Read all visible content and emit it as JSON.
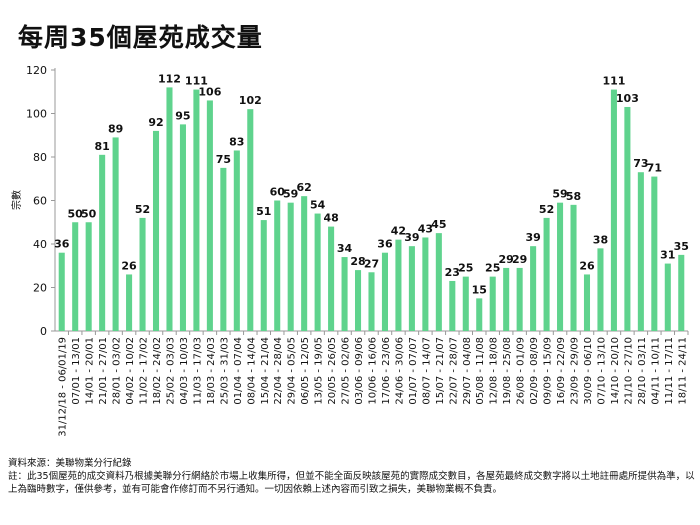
{
  "title": "每周35個屋苑成交量",
  "chart_data": {
    "type": "bar",
    "title": "每周35個屋苑成交量",
    "xlabel": "",
    "ylabel": "宗數",
    "ylim": [
      0,
      120
    ],
    "yticks": [
      0,
      20,
      40,
      60,
      80,
      100,
      120
    ],
    "grid": false,
    "color": "#5fd38d",
    "categories": [
      "31/12/18 - 06/01/19",
      "07/01 - 13/01",
      "14/01 - 20/01",
      "21/01 - 27/01",
      "28/01 - 03/02",
      "04/02 - 10/02",
      "11/02 - 17/02",
      "18/02 - 24/02",
      "25/02 - 03/03",
      "04/03 - 10/03",
      "11/03 - 17/03",
      "18/03 - 24/03",
      "25/03 - 31/03",
      "01/04 - 07/04",
      "08/04 - 14/04",
      "15/04 - 21/04",
      "22/04 - 28/04",
      "29/04 - 05/05",
      "06/05 - 12/05",
      "13/05 - 19/05",
      "20/05 - 26/05",
      "27/05 - 02/06",
      "03/06 - 09/06",
      "10/06 - 16/06",
      "17/06 - 23/06",
      "24/06 - 30/06",
      "01/07 - 07/07",
      "08/07 - 14/07",
      "15/07 - 21/07",
      "22/07 - 28/07",
      "29/07 - 04/08",
      "05/08 - 11/08",
      "12/08 - 18/08",
      "19/08 - 25/08",
      "26/08 - 01/09",
      "02/09 - 08/09",
      "09/09 - 15/09",
      "16/09 - 22/09",
      "23/09 - 29/09",
      "30/09 - 06/10",
      "07/10 - 13/10",
      "14/10 - 20/10",
      "21/10 - 27/10",
      "28/10 - 03/11",
      "04/11 - 10/11",
      "11/11 - 17/11",
      "18/11 - 24/11"
    ],
    "values": [
      36,
      50,
      50,
      81,
      89,
      26,
      52,
      92,
      112,
      95,
      111,
      106,
      75,
      83,
      102,
      51,
      60,
      59,
      62,
      54,
      48,
      34,
      28,
      27,
      36,
      42,
      39,
      43,
      45,
      23,
      25,
      15,
      25,
      29,
      29,
      39,
      52,
      59,
      58,
      26,
      38,
      111,
      103,
      73,
      71,
      31,
      35
    ]
  },
  "notes": {
    "source": "資料來源：美聯物業分行紀錄",
    "disclaimer": "註：此35個屋苑的成交資料乃根據美聯分行網絡於市場上收集所得，但並不能全面反映該屋苑的實際成交數目，各屋苑最終成交數字將以土地註冊處所提供為準，以上為臨時數字，僅供參考，並有可能會作修訂而不另行通知。一切因依賴上述內容而引致之損失，美聯物業概不負責。"
  }
}
